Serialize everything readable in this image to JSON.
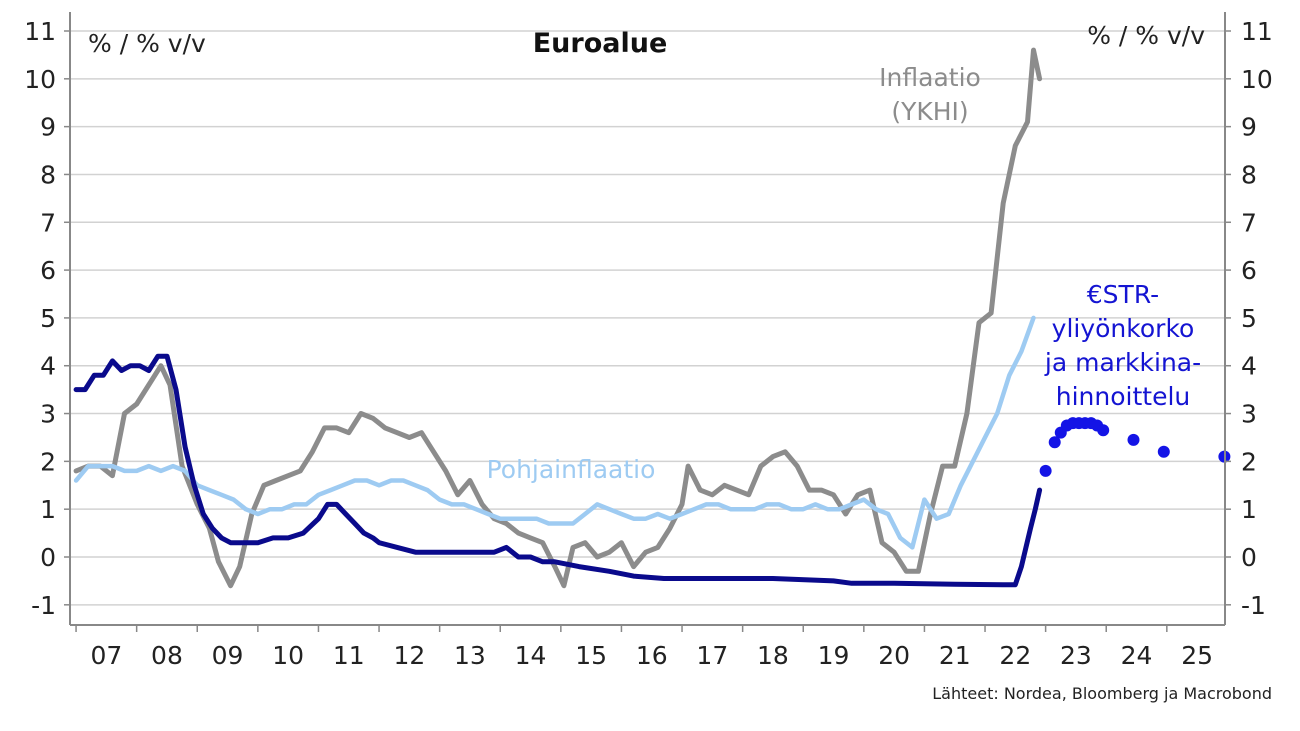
{
  "chart_data": {
    "type": "line",
    "title": "Euroalue",
    "ylabel_left": "% / % v/v",
    "ylabel_right": "% / % v/v",
    "ylim": [
      -1.2,
      11.5
    ],
    "yticks": [
      -1,
      0,
      1,
      2,
      3,
      4,
      5,
      6,
      7,
      8,
      9,
      10,
      11
    ],
    "xlim": [
      2006.9,
      2025.96
    ],
    "xtick_labels": [
      "07",
      "08",
      "09",
      "10",
      "11",
      "12",
      "13",
      "14",
      "15",
      "16",
      "17",
      "18",
      "19",
      "20",
      "21",
      "22",
      "23",
      "24",
      "25"
    ],
    "grid": true,
    "source": "Lähteet: Nordea, Bloomberg ja Macrobond",
    "annotations": [
      {
        "id": "inflation",
        "lines": [
          "Inflaatio",
          "(YKHI)"
        ],
        "color": "#8c8c8c"
      },
      {
        "id": "core",
        "lines": [
          "Pohjainflaatio"
        ],
        "color": "#9ecbf2"
      },
      {
        "id": "estr",
        "lines": [
          "€STR-",
          "yliyönkorko",
          "ja markkina-",
          "hinnoittelu"
        ],
        "color": "#1414d2"
      }
    ],
    "series": [
      {
        "name": "Inflaatio (YKHI)",
        "color": "#8c8c8c",
        "style": "line",
        "x": [
          2007.0,
          2007.2,
          2007.4,
          2007.6,
          2007.8,
          2008.0,
          2008.2,
          2008.4,
          2008.55,
          2008.75,
          2009.0,
          2009.2,
          2009.35,
          2009.55,
          2009.7,
          2009.9,
          2010.1,
          2010.3,
          2010.5,
          2010.7,
          2010.9,
          2011.1,
          2011.3,
          2011.5,
          2011.7,
          2011.9,
          2012.1,
          2012.3,
          2012.5,
          2012.7,
          2012.9,
          2013.1,
          2013.3,
          2013.5,
          2013.7,
          2013.9,
          2014.1,
          2014.3,
          2014.5,
          2014.7,
          2014.9,
          2015.05,
          2015.2,
          2015.4,
          2015.6,
          2015.8,
          2016.0,
          2016.2,
          2016.4,
          2016.6,
          2016.8,
          2017.0,
          2017.1,
          2017.3,
          2017.5,
          2017.7,
          2017.9,
          2018.1,
          2018.3,
          2018.5,
          2018.7,
          2018.9,
          2019.1,
          2019.3,
          2019.5,
          2019.7,
          2019.9,
          2020.1,
          2020.3,
          2020.5,
          2020.7,
          2020.9,
          2021.1,
          2021.3,
          2021.5,
          2021.7,
          2021.9,
          2022.1,
          2022.3,
          2022.5,
          2022.7,
          2022.8,
          2022.9
        ],
        "y": [
          1.8,
          1.9,
          1.9,
          1.7,
          3.0,
          3.2,
          3.6,
          4.0,
          3.6,
          1.9,
          1.1,
          0.6,
          -0.1,
          -0.6,
          -0.2,
          0.9,
          1.5,
          1.6,
          1.7,
          1.8,
          2.2,
          2.7,
          2.7,
          2.6,
          3.0,
          2.9,
          2.7,
          2.6,
          2.5,
          2.6,
          2.2,
          1.8,
          1.3,
          1.6,
          1.1,
          0.8,
          0.7,
          0.5,
          0.4,
          0.3,
          -0.2,
          -0.6,
          0.2,
          0.3,
          0.0,
          0.1,
          0.3,
          -0.2,
          0.1,
          0.2,
          0.6,
          1.1,
          1.9,
          1.4,
          1.3,
          1.5,
          1.4,
          1.3,
          1.9,
          2.1,
          2.2,
          1.9,
          1.4,
          1.4,
          1.3,
          0.9,
          1.3,
          1.4,
          0.3,
          0.1,
          -0.3,
          -0.3,
          0.9,
          1.9,
          1.9,
          3.0,
          4.9,
          5.1,
          7.4,
          8.6,
          9.1,
          10.6,
          10.0
        ]
      },
      {
        "name": "Pohjainflaatio",
        "color": "#9ecbf2",
        "style": "line",
        "x": [
          2007.0,
          2007.2,
          2007.4,
          2007.6,
          2007.8,
          2008.0,
          2008.2,
          2008.4,
          2008.6,
          2008.8,
          2009.0,
          2009.2,
          2009.4,
          2009.6,
          2009.8,
          2010.0,
          2010.2,
          2010.4,
          2010.6,
          2010.8,
          2011.0,
          2011.2,
          2011.4,
          2011.6,
          2011.8,
          2012.0,
          2012.2,
          2012.4,
          2012.6,
          2012.8,
          2013.0,
          2013.2,
          2013.4,
          2013.6,
          2013.8,
          2014.0,
          2014.2,
          2014.4,
          2014.6,
          2014.8,
          2015.0,
          2015.2,
          2015.4,
          2015.6,
          2015.8,
          2016.0,
          2016.2,
          2016.4,
          2016.6,
          2016.8,
          2017.0,
          2017.2,
          2017.4,
          2017.6,
          2017.8,
          2018.0,
          2018.2,
          2018.4,
          2018.6,
          2018.8,
          2019.0,
          2019.2,
          2019.4,
          2019.6,
          2019.8,
          2020.0,
          2020.2,
          2020.4,
          2020.6,
          2020.8,
          2021.0,
          2021.2,
          2021.4,
          2021.6,
          2021.8,
          2022.0,
          2022.2,
          2022.4,
          2022.6,
          2022.8
        ],
        "y": [
          1.6,
          1.9,
          1.9,
          1.9,
          1.8,
          1.8,
          1.9,
          1.8,
          1.9,
          1.8,
          1.5,
          1.4,
          1.3,
          1.2,
          1.0,
          0.9,
          1.0,
          1.0,
          1.1,
          1.1,
          1.3,
          1.4,
          1.5,
          1.6,
          1.6,
          1.5,
          1.6,
          1.6,
          1.5,
          1.4,
          1.2,
          1.1,
          1.1,
          1.0,
          0.9,
          0.8,
          0.8,
          0.8,
          0.8,
          0.7,
          0.7,
          0.7,
          0.9,
          1.1,
          1.0,
          0.9,
          0.8,
          0.8,
          0.9,
          0.8,
          0.9,
          1.0,
          1.1,
          1.1,
          1.0,
          1.0,
          1.0,
          1.1,
          1.1,
          1.0,
          1.0,
          1.1,
          1.0,
          1.0,
          1.1,
          1.2,
          1.0,
          0.9,
          0.4,
          0.2,
          1.2,
          0.8,
          0.9,
          1.5,
          2.0,
          2.5,
          3.0,
          3.8,
          4.3,
          5.0
        ]
      },
      {
        "name": "€STR-yliyönkorko",
        "color": "#0a0a8c",
        "style": "line",
        "x": [
          2007.0,
          2007.15,
          2007.3,
          2007.45,
          2007.6,
          2007.75,
          2007.9,
          2008.05,
          2008.2,
          2008.35,
          2008.5,
          2008.65,
          2008.8,
          2008.95,
          2009.1,
          2009.25,
          2009.4,
          2009.55,
          2009.75,
          2010.0,
          2010.25,
          2010.5,
          2010.75,
          2011.0,
          2011.15,
          2011.3,
          2011.45,
          2011.6,
          2011.75,
          2011.9,
          2012.0,
          2012.3,
          2012.6,
          2013.0,
          2013.3,
          2013.6,
          2013.9,
          2014.1,
          2014.3,
          2014.5,
          2014.7,
          2014.9,
          2015.3,
          2015.8,
          2016.2,
          2016.7,
          2017.5,
          2018.5,
          2019.5,
          2019.8,
          2020.5,
          2021.5,
          2022.3,
          2022.5,
          2022.6,
          2022.75,
          2022.83,
          2022.9
        ],
        "y": [
          3.5,
          3.5,
          3.8,
          3.8,
          4.1,
          3.9,
          4.0,
          4.0,
          3.9,
          4.2,
          4.2,
          3.5,
          2.3,
          1.5,
          0.9,
          0.6,
          0.4,
          0.3,
          0.3,
          0.3,
          0.4,
          0.4,
          0.5,
          0.8,
          1.1,
          1.1,
          0.9,
          0.7,
          0.5,
          0.4,
          0.3,
          0.2,
          0.1,
          0.1,
          0.1,
          0.1,
          0.1,
          0.2,
          0.0,
          0.0,
          -0.1,
          -0.1,
          -0.2,
          -0.3,
          -0.4,
          -0.45,
          -0.45,
          -0.45,
          -0.5,
          -0.55,
          -0.55,
          -0.57,
          -0.58,
          -0.58,
          -0.2,
          0.6,
          1.0,
          1.4
        ]
      },
      {
        "name": "markkinahinnoittelu",
        "color": "#1414e6",
        "style": "dots",
        "x": [
          2023.0,
          2023.15,
          2023.25,
          2023.35,
          2023.45,
          2023.55,
          2023.65,
          2023.75,
          2023.85,
          2023.95,
          2024.45,
          2024.95,
          2025.95
        ],
        "y": [
          1.8,
          2.4,
          2.6,
          2.75,
          2.8,
          2.8,
          2.8,
          2.8,
          2.75,
          2.65,
          2.45,
          2.2,
          2.1
        ]
      }
    ]
  }
}
